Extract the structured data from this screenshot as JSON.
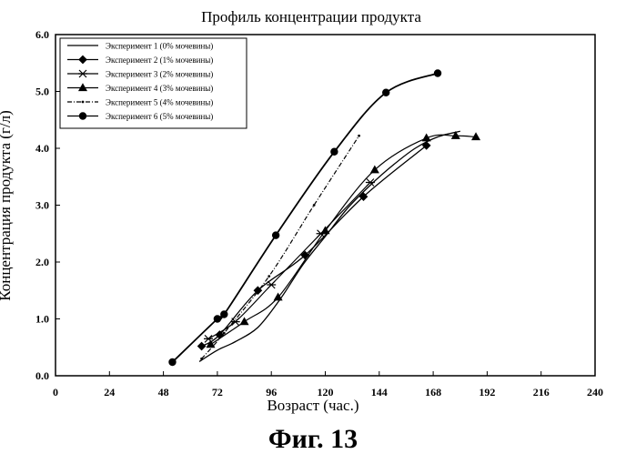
{
  "figure_caption": "Фиг. 13",
  "chart_data": {
    "type": "line",
    "title": "Профиль концентрации продукта",
    "xlabel": "Возраст (час.)",
    "ylabel": "Концентрация продукта (г/л)",
    "xlim": [
      0,
      240
    ],
    "ylim": [
      0,
      6
    ],
    "xticks": [
      "0",
      "24",
      "48",
      "72",
      "96",
      "120",
      "144",
      "168",
      "192",
      "216",
      "240"
    ],
    "yticks": [
      "0.0",
      "1.0",
      "2.0",
      "3.0",
      "4.0",
      "5.0",
      "6.0"
    ],
    "grid": false,
    "legend_position": "top-left",
    "series": [
      {
        "name": "Эксперимент 1 (0% мочевины)",
        "marker": "none",
        "x": [
          64,
          72,
          80,
          90,
          100,
          110,
          120,
          130,
          140,
          150,
          160,
          170,
          180
        ],
        "y": [
          0.25,
          0.45,
          0.6,
          0.85,
          1.35,
          1.95,
          2.45,
          2.95,
          3.35,
          3.7,
          4.0,
          4.2,
          4.3
        ]
      },
      {
        "name": "Эксперимент 2 (1% мочевины)",
        "marker": "diamond",
        "x": [
          65,
          73,
          90,
          111,
          137,
          165
        ],
        "y": [
          0.52,
          0.72,
          1.5,
          2.12,
          3.15,
          4.05
        ]
      },
      {
        "name": "Эксперимент 3 (2% мочевины)",
        "marker": "star",
        "x": [
          68,
          80,
          96,
          118,
          140
        ],
        "y": [
          0.65,
          0.95,
          1.6,
          2.5,
          3.4
        ]
      },
      {
        "name": "Эксперимент 4 (3% мочевины)",
        "marker": "triangle",
        "x": [
          69,
          84,
          99,
          120,
          142,
          165,
          178,
          187
        ],
        "y": [
          0.55,
          0.95,
          1.38,
          2.55,
          3.62,
          4.18,
          4.22,
          4.2
        ]
      },
      {
        "name": "Эксперимент 5 (4% мочевины)",
        "marker": "dot",
        "x": [
          65,
          75,
          95,
          115,
          135
        ],
        "y": [
          0.3,
          0.75,
          1.75,
          3.0,
          4.22
        ]
      },
      {
        "name": "Эксперимент 6 (5% мочевины)",
        "marker": "circle",
        "x": [
          52,
          72,
          75,
          98,
          124,
          147,
          170
        ],
        "y": [
          0.24,
          1.0,
          1.08,
          2.47,
          3.94,
          4.98,
          5.32
        ]
      }
    ]
  }
}
